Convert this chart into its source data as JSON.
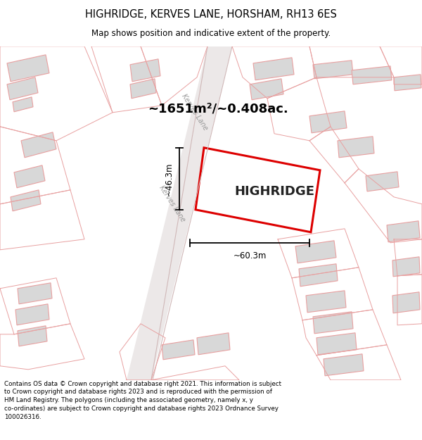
{
  "title": "HIGHRIDGE, KERVES LANE, HORSHAM, RH13 6ES",
  "subtitle": "Map shows position and indicative extent of the property.",
  "area_text": "~1651m²/~0.408ac.",
  "property_label": "HIGHRIDGE",
  "dim_width": "~60.3m",
  "dim_height": "~46.3m",
  "road_label": "Kerves Lane",
  "footer": "Contains OS data © Crown copyright and database right 2021. This information is subject\nto Crown copyright and database rights 2023 and is reproduced with the permission of\nHM Land Registry. The polygons (including the associated geometry, namely x, y\nco-ordinates) are subject to Crown copyright and database rights 2023 Ordnance Survey\n100026316.",
  "map_bg": "#ffffff",
  "building_fill": "#d8d8d8",
  "building_edge": "#e8a0a0",
  "highlight_fill": "#ffffff",
  "highlight_edge": "#dd0000",
  "parcel_edge": "#e8a0a0",
  "road_fill": "#e8e0e0"
}
